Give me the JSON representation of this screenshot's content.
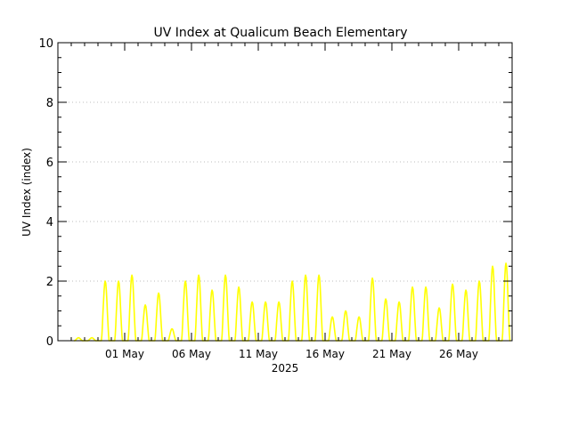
{
  "chart_data": {
    "type": "line",
    "title": "UV Index at Qualicum Beach Elementary",
    "ylabel": "UV Index (index)",
    "xlabel": "2025",
    "ylim": [
      0,
      10
    ],
    "yticks": [
      "0",
      "2",
      "4",
      "6",
      "8",
      "10"
    ],
    "xticks": [
      "01 May",
      "06 May",
      "11 May",
      "16 May",
      "21 May",
      "26 May"
    ],
    "grid": true,
    "line_color": "#ffff00",
    "series": [
      {
        "daily_peaks": [
          {
            "date": "2025-04-27",
            "uv": 0.1
          },
          {
            "date": "2025-04-28",
            "uv": 0.1
          },
          {
            "date": "2025-04-29",
            "uv": 2.0
          },
          {
            "date": "2025-04-30",
            "uv": 2.0
          },
          {
            "date": "2025-05-01",
            "uv": 2.2
          },
          {
            "date": "2025-05-02",
            "uv": 1.2
          },
          {
            "date": "2025-05-03",
            "uv": 1.6
          },
          {
            "date": "2025-05-04",
            "uv": 0.4
          },
          {
            "date": "2025-05-05",
            "uv": 2.0
          },
          {
            "date": "2025-05-06",
            "uv": 2.2
          },
          {
            "date": "2025-05-07",
            "uv": 1.7
          },
          {
            "date": "2025-05-08",
            "uv": 2.2
          },
          {
            "date": "2025-05-09",
            "uv": 1.8
          },
          {
            "date": "2025-05-10",
            "uv": 1.3
          },
          {
            "date": "2025-05-11",
            "uv": 1.3
          },
          {
            "date": "2025-05-12",
            "uv": 1.3
          },
          {
            "date": "2025-05-13",
            "uv": 2.0
          },
          {
            "date": "2025-05-14",
            "uv": 2.2
          },
          {
            "date": "2025-05-15",
            "uv": 2.2
          },
          {
            "date": "2025-05-16",
            "uv": 0.8
          },
          {
            "date": "2025-05-17",
            "uv": 1.0
          },
          {
            "date": "2025-05-18",
            "uv": 0.8
          },
          {
            "date": "2025-05-19",
            "uv": 2.1
          },
          {
            "date": "2025-05-20",
            "uv": 1.4
          },
          {
            "date": "2025-05-21",
            "uv": 1.3
          },
          {
            "date": "2025-05-22",
            "uv": 1.8
          },
          {
            "date": "2025-05-23",
            "uv": 1.8
          },
          {
            "date": "2025-05-24",
            "uv": 1.1
          },
          {
            "date": "2025-05-25",
            "uv": 1.9
          },
          {
            "date": "2025-05-26",
            "uv": 1.7
          },
          {
            "date": "2025-05-27",
            "uv": 2.0
          },
          {
            "date": "2025-05-28",
            "uv": 2.5
          },
          {
            "date": "2025-05-29",
            "uv": 2.6
          }
        ]
      }
    ]
  }
}
